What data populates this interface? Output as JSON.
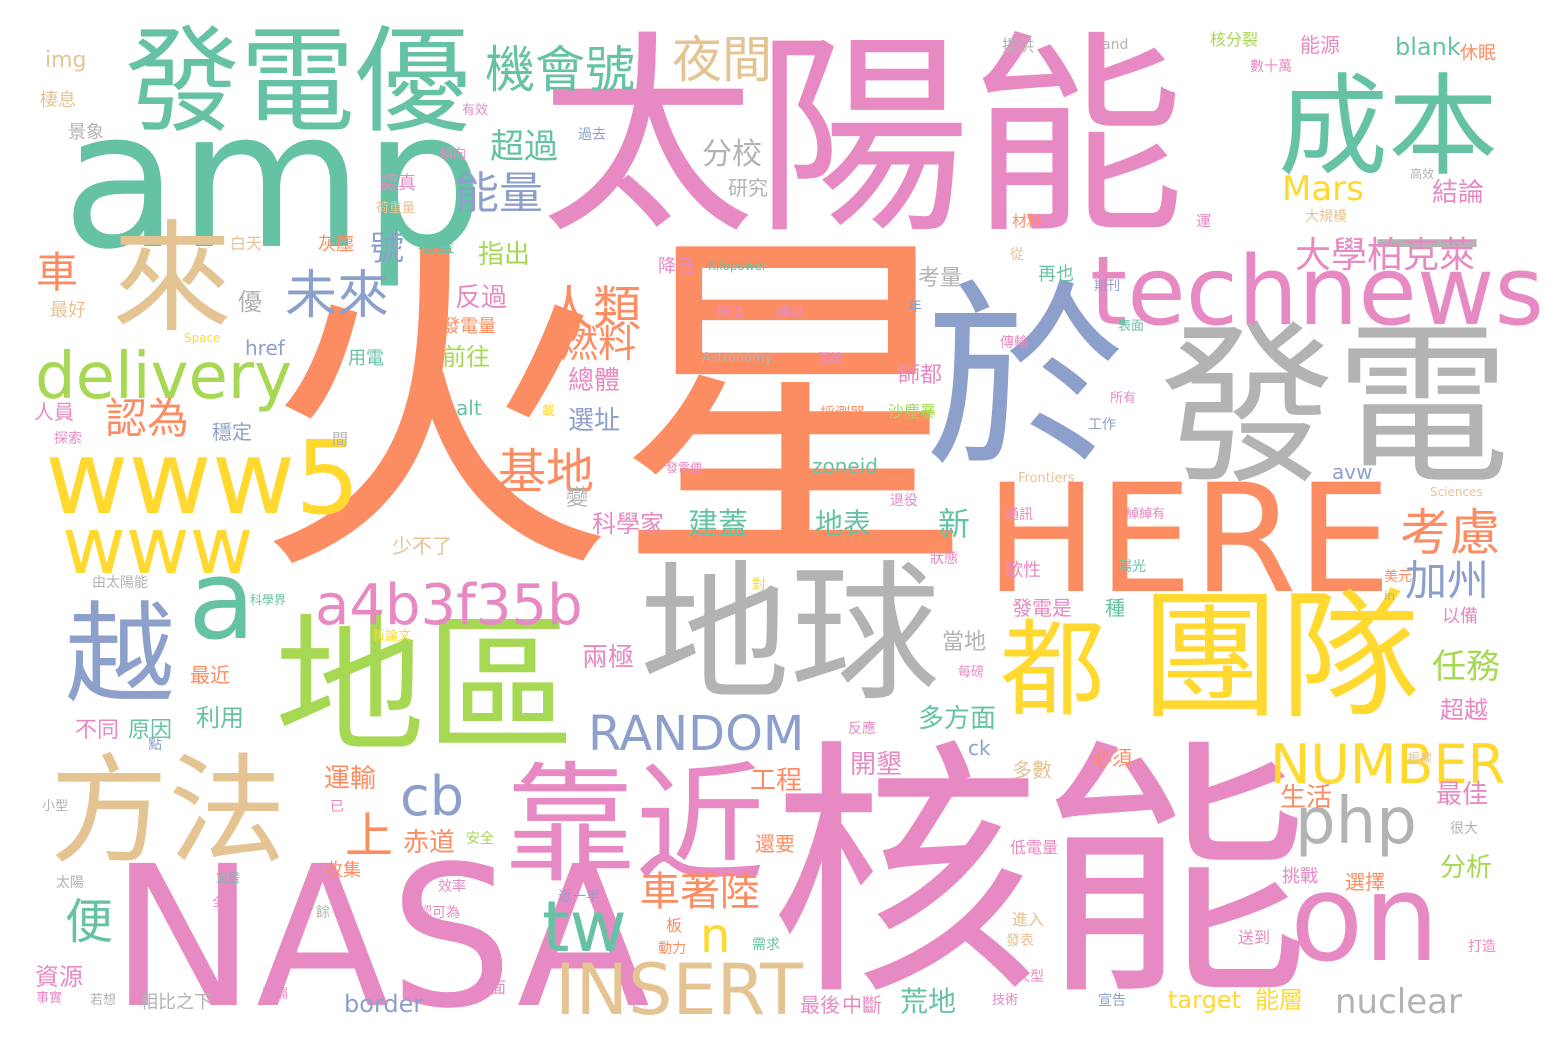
{
  "colors": {
    "orange": "#fc8d62",
    "pink": "#e78ac3",
    "green": "#66c2a5",
    "blue": "#8da0cb",
    "lime": "#a6d854",
    "yellow": "#ffd92f",
    "tan": "#e5c494",
    "gray": "#b3b3b3"
  },
  "words": [
    {
      "t": "火星",
      "c": "orange"
    },
    {
      "t": "太陽能",
      "c": "pink"
    },
    {
      "t": "核能",
      "c": "pink"
    },
    {
      "t": "於",
      "c": "blue"
    },
    {
      "t": "發電",
      "c": "gray"
    },
    {
      "t": "amp",
      "c": "green"
    },
    {
      "t": "發電優",
      "c": "green"
    },
    {
      "t": "NASA",
      "c": "pink"
    },
    {
      "t": "HERE",
      "c": "orange"
    },
    {
      "t": "團隊",
      "c": "yellow"
    },
    {
      "t": "地球",
      "c": "gray"
    },
    {
      "t": "地區",
      "c": "lime"
    },
    {
      "t": "來",
      "c": "tan"
    },
    {
      "t": "成本",
      "c": "green"
    },
    {
      "t": "technews",
      "c": "pink"
    },
    {
      "t": "www5",
      "c": "yellow"
    },
    {
      "t": "方法",
      "c": "tan"
    },
    {
      "t": "靠近",
      "c": "pink"
    },
    {
      "t": "on",
      "c": "pink"
    },
    {
      "t": "越",
      "c": "blue"
    },
    {
      "t": "a",
      "c": "green"
    },
    {
      "t": "www",
      "c": "yellow"
    },
    {
      "t": "都",
      "c": "yellow"
    },
    {
      "t": "a4b3f35b",
      "c": "pink"
    },
    {
      "t": "delivery",
      "c": "lime"
    },
    {
      "t": "INSERT",
      "c": "tan"
    },
    {
      "t": "NUMBER",
      "c": "yellow"
    },
    {
      "t": "RANDOM",
      "c": "blue"
    },
    {
      "t": "php",
      "c": "gray"
    },
    {
      "t": "tw",
      "c": "green"
    },
    {
      "t": "cb",
      "c": "blue"
    },
    {
      "t": "機會號",
      "c": "green"
    },
    {
      "t": "夜間",
      "c": "tan"
    },
    {
      "t": "未來",
      "c": "blue"
    },
    {
      "t": "—",
      "c": "gray"
    },
    {
      "t": "考慮",
      "c": "orange"
    },
    {
      "t": "基地",
      "c": "orange"
    },
    {
      "t": "人類",
      "c": "orange"
    },
    {
      "t": "能量",
      "c": "blue"
    },
    {
      "t": "大學柏克萊",
      "c": "pink"
    },
    {
      "t": "nuclear",
      "c": "gray"
    },
    {
      "t": "車著陸",
      "c": "orange"
    },
    {
      "t": "認為",
      "c": "orange"
    },
    {
      "t": "燃料",
      "c": "orange"
    },
    {
      "t": "加州",
      "c": "blue"
    },
    {
      "t": "任務",
      "c": "lime"
    },
    {
      "t": "超過",
      "c": "green"
    },
    {
      "t": "分校",
      "c": "gray"
    },
    {
      "t": "Mars",
      "c": "yellow"
    },
    {
      "t": "車",
      "c": "orange"
    },
    {
      "t": "號",
      "c": "blue"
    },
    {
      "t": "便",
      "c": "green"
    },
    {
      "t": "上",
      "c": "orange"
    },
    {
      "t": "n",
      "c": "yellow"
    },
    {
      "t": "結論",
      "c": "pink"
    },
    {
      "t": "指出",
      "c": "lime"
    },
    {
      "t": "反過",
      "c": "pink"
    },
    {
      "t": "前往",
      "c": "lime"
    },
    {
      "t": "總體",
      "c": "pink"
    },
    {
      "t": "選址",
      "c": "blue"
    },
    {
      "t": "科學家",
      "c": "pink"
    },
    {
      "t": "建蓋",
      "c": "green"
    },
    {
      "t": "地表",
      "c": "green"
    },
    {
      "t": "新",
      "c": "green"
    },
    {
      "t": "兩極",
      "c": "pink"
    },
    {
      "t": "多方面",
      "c": "green"
    },
    {
      "t": "開墾",
      "c": "pink"
    },
    {
      "t": "工程",
      "c": "orange"
    },
    {
      "t": "運輸",
      "c": "orange"
    },
    {
      "t": "赤道",
      "c": "orange"
    },
    {
      "t": "利用",
      "c": "green"
    },
    {
      "t": "原因",
      "c": "green"
    },
    {
      "t": "不同",
      "c": "pink"
    },
    {
      "t": "生活",
      "c": "orange"
    },
    {
      "t": "最佳",
      "c": "pink"
    },
    {
      "t": "分析",
      "c": "lime"
    },
    {
      "t": "超越",
      "c": "pink"
    },
    {
      "t": "荒地",
      "c": "green"
    },
    {
      "t": "border",
      "c": "blue"
    },
    {
      "t": "target",
      "c": "yellow"
    },
    {
      "t": "能層",
      "c": "yellow"
    },
    {
      "t": "最後",
      "c": "pink"
    },
    {
      "t": "中斷",
      "c": "pink"
    },
    {
      "t": "資源",
      "c": "pink"
    },
    {
      "t": "blank",
      "c": "green"
    },
    {
      "t": "能源",
      "c": "pink"
    },
    {
      "t": "核分裂",
      "c": "lime"
    },
    {
      "t": "休眠",
      "c": "orange"
    },
    {
      "t": "img",
      "c": "tan"
    },
    {
      "t": "棲息",
      "c": "tan"
    },
    {
      "t": "景象",
      "c": "gray"
    },
    {
      "t": "認真",
      "c": "pink"
    },
    {
      "t": "灰塵",
      "c": "orange"
    },
    {
      "t": "覆蓋",
      "c": "green"
    },
    {
      "t": "白天",
      "c": "tan"
    },
    {
      "t": "最好",
      "c": "tan"
    },
    {
      "t": "優",
      "c": "gray"
    },
    {
      "t": "href",
      "c": "blue"
    },
    {
      "t": "用電",
      "c": "green"
    },
    {
      "t": "師都",
      "c": "pink"
    },
    {
      "t": "穩定",
      "c": "blue"
    },
    {
      "t": "人員",
      "c": "pink"
    },
    {
      "t": "alt",
      "c": "green"
    },
    {
      "t": "zoneid",
      "c": "green"
    },
    {
      "t": "avw",
      "c": "blue"
    },
    {
      "t": "當地",
      "c": "gray"
    },
    {
      "t": "ck",
      "c": "blue"
    },
    {
      "t": "多數",
      "c": "tan"
    },
    {
      "t": "必須",
      "c": "orange"
    },
    {
      "t": "最近",
      "c": "orange"
    },
    {
      "t": "變",
      "c": "gray"
    },
    {
      "t": "少不了",
      "c": "tan"
    },
    {
      "t": "收集",
      "c": "orange"
    },
    {
      "t": "還要",
      "c": "orange"
    },
    {
      "t": "選擇",
      "c": "orange"
    },
    {
      "t": "挑戰",
      "c": "pink"
    },
    {
      "t": "考量",
      "c": "gray"
    },
    {
      "t": "發電量",
      "c": "orange"
    },
    {
      "t": "研究",
      "c": "gray"
    },
    {
      "t": "降低",
      "c": "pink"
    },
    {
      "t": "發電是",
      "c": "pink"
    },
    {
      "t": "歌性",
      "c": "pink"
    },
    {
      "t": "種",
      "c": "green"
    },
    {
      "t": "以備",
      "c": "pink"
    },
    {
      "t": "提供",
      "c": "gray"
    },
    {
      "t": "and",
      "c": "gray"
    },
    {
      "t": "數十萬",
      "c": "pink"
    },
    {
      "t": "高效",
      "c": "gray"
    },
    {
      "t": "過去",
      "c": "blue"
    },
    {
      "t": "有效",
      "c": "pink"
    },
    {
      "t": "傾向",
      "c": "pink"
    },
    {
      "t": "荷重量",
      "c": "tan"
    },
    {
      "t": "材料",
      "c": "orange"
    },
    {
      "t": "運",
      "c": "pink"
    },
    {
      "t": "大規模",
      "c": "tan"
    },
    {
      "t": "從",
      "c": "tan"
    },
    {
      "t": "再也",
      "c": "green"
    },
    {
      "t": "期刊",
      "c": "blue"
    },
    {
      "t": "Kilopower",
      "c": "green"
    },
    {
      "t": "無法",
      "c": "pink"
    },
    {
      "t": "偶以",
      "c": "pink"
    },
    {
      "t": "Astronomy",
      "c": "gray"
    },
    {
      "t": "關鍵",
      "c": "pink"
    },
    {
      "t": "傳輸",
      "c": "pink"
    },
    {
      "t": "表面",
      "c": "green"
    },
    {
      "t": "年",
      "c": "blue"
    },
    {
      "t": "Space",
      "c": "yellow"
    },
    {
      "t": "探索",
      "c": "pink"
    },
    {
      "t": "間",
      "c": "gray"
    },
    {
      "t": "載",
      "c": "yellow"
    },
    {
      "t": "採測器",
      "c": "orange"
    },
    {
      "t": "沙塵暴",
      "c": "lime"
    },
    {
      "t": "所有",
      "c": "pink"
    },
    {
      "t": "工作",
      "c": "blue"
    },
    {
      "t": "Frontiers",
      "c": "tan"
    },
    {
      "t": "Sciences",
      "c": "tan"
    },
    {
      "t": "發電便",
      "c": "pink"
    },
    {
      "t": "退役",
      "c": "pink"
    },
    {
      "t": "通訊",
      "c": "pink"
    },
    {
      "t": "綽綽有",
      "c": "pink"
    },
    {
      "t": "狀態",
      "c": "pink"
    },
    {
      "t": "陽光",
      "c": "green"
    },
    {
      "t": "美元",
      "c": "orange"
    },
    {
      "t": "對",
      "c": "yellow"
    },
    {
      "t": "由太陽能",
      "c": "gray"
    },
    {
      "t": "科學界",
      "c": "green"
    },
    {
      "t": "新論文",
      "c": "yellow"
    },
    {
      "t": "每磅",
      "c": "pink"
    },
    {
      "t": "in",
      "c": "gray"
    },
    {
      "t": "點",
      "c": "blue"
    },
    {
      "t": "反應",
      "c": "pink"
    },
    {
      "t": "根據",
      "c": "tan"
    },
    {
      "t": "已",
      "c": "pink"
    },
    {
      "t": "安全",
      "c": "lime"
    },
    {
      "t": "低電量",
      "c": "pink"
    },
    {
      "t": "很大",
      "c": "gray"
    },
    {
      "t": "小型",
      "c": "gray"
    },
    {
      "t": "太陽",
      "c": "gray"
    },
    {
      "t": "定居",
      "c": "green"
    },
    {
      "t": "全面",
      "c": "pink"
    },
    {
      "t": "效率",
      "c": "pink"
    },
    {
      "t": "近一半",
      "c": "blue"
    },
    {
      "t": "認可為",
      "c": "pink"
    },
    {
      "t": "餘",
      "c": "gray"
    },
    {
      "t": "板",
      "c": "orange"
    },
    {
      "t": "動力",
      "c": "orange"
    },
    {
      "t": "需求",
      "c": "green"
    },
    {
      "t": "進入",
      "c": "tan"
    },
    {
      "t": "發表",
      "c": "tan"
    },
    {
      "t": "送到",
      "c": "pink"
    },
    {
      "t": "打造",
      "c": "pink"
    },
    {
      "t": "大型",
      "c": "pink"
    },
    {
      "t": "事實",
      "c": "pink"
    },
    {
      "t": "若想",
      "c": "gray"
    },
    {
      "t": "相比之下",
      "c": "gray"
    },
    {
      "t": "阻隔",
      "c": "pink"
    },
    {
      "t": "面",
      "c": "pink"
    },
    {
      "t": "技術",
      "c": "pink"
    },
    {
      "t": "宣告",
      "c": "blue"
    },
    {
      "t": "間",
      "c": "gray"
    }
  ]
}
